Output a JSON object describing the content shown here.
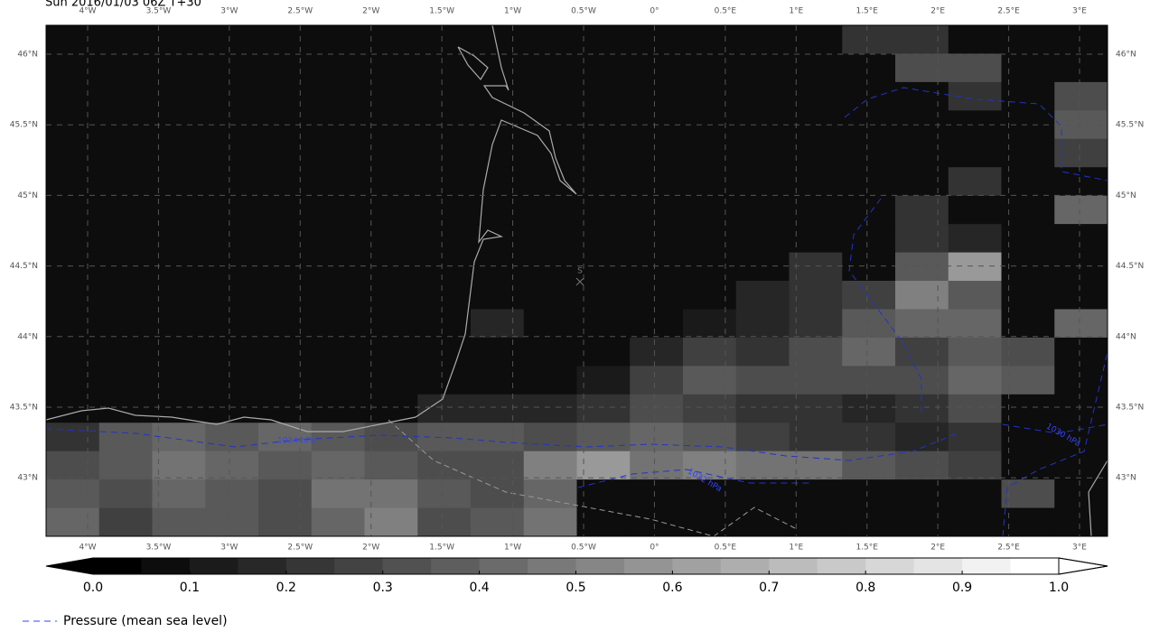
{
  "title": "Sun 2016/01/03 06Z T+30",
  "map": {
    "lon_labels": [
      "4°W",
      "3.5°W",
      "3°W",
      "2.5°W",
      "2°W",
      "1.5°W",
      "1°W",
      "0.5°W",
      "0°",
      "0.5°E",
      "1°E",
      "1.5°E",
      "2°E",
      "2.5°E",
      "3°E"
    ],
    "lat_labels": [
      "46°N",
      "45.5°N",
      "45°N",
      "44.5°N",
      "44°N",
      "43.5°N",
      "43°N"
    ],
    "contour_labels": [
      "1034 hPa",
      "1032 hPa",
      "1030 hPa"
    ],
    "station": "S",
    "cloud_fraction": [
      [
        0.05,
        0.05,
        0.05,
        0.05,
        0.05,
        0.05,
        0.05,
        0.05,
        0.05,
        0.05,
        0.05,
        0.05,
        0.05,
        0.05,
        0.05,
        0.2,
        0.2,
        0.05,
        0.05,
        0.05
      ],
      [
        0.05,
        0.05,
        0.05,
        0.05,
        0.05,
        0.05,
        0.05,
        0.05,
        0.05,
        0.05,
        0.05,
        0.05,
        0.05,
        0.05,
        0.05,
        0.05,
        0.3,
        0.3,
        0.05,
        0.05
      ],
      [
        0.05,
        0.05,
        0.05,
        0.05,
        0.05,
        0.05,
        0.05,
        0.05,
        0.05,
        0.05,
        0.05,
        0.05,
        0.05,
        0.05,
        0.05,
        0.05,
        0.05,
        0.2,
        0.05,
        0.3
      ],
      [
        0.05,
        0.05,
        0.05,
        0.05,
        0.05,
        0.05,
        0.05,
        0.05,
        0.05,
        0.05,
        0.05,
        0.05,
        0.05,
        0.05,
        0.05,
        0.05,
        0.05,
        0.05,
        0.05,
        0.35
      ],
      [
        0.05,
        0.05,
        0.05,
        0.05,
        0.05,
        0.05,
        0.05,
        0.05,
        0.05,
        0.05,
        0.05,
        0.05,
        0.05,
        0.05,
        0.05,
        0.05,
        0.05,
        0.05,
        0.05,
        0.25
      ],
      [
        0.05,
        0.05,
        0.05,
        0.05,
        0.05,
        0.05,
        0.05,
        0.05,
        0.05,
        0.05,
        0.05,
        0.05,
        0.05,
        0.05,
        0.05,
        0.05,
        0.05,
        0.2,
        0.05,
        0.05
      ],
      [
        0.05,
        0.05,
        0.05,
        0.05,
        0.05,
        0.05,
        0.05,
        0.05,
        0.05,
        0.05,
        0.05,
        0.05,
        0.05,
        0.05,
        0.05,
        0.05,
        0.2,
        0.05,
        0.05,
        0.4
      ],
      [
        0.05,
        0.05,
        0.05,
        0.05,
        0.05,
        0.05,
        0.05,
        0.05,
        0.05,
        0.05,
        0.05,
        0.05,
        0.05,
        0.05,
        0.05,
        0.05,
        0.2,
        0.15,
        0.05,
        0.05
      ],
      [
        0.05,
        0.05,
        0.05,
        0.05,
        0.05,
        0.05,
        0.05,
        0.05,
        0.05,
        0.05,
        0.05,
        0.05,
        0.05,
        0.05,
        0.2,
        0.05,
        0.35,
        0.6,
        0.05,
        0.05
      ],
      [
        0.05,
        0.05,
        0.05,
        0.05,
        0.05,
        0.05,
        0.05,
        0.05,
        0.05,
        0.05,
        0.05,
        0.05,
        0.05,
        0.15,
        0.2,
        0.25,
        0.5,
        0.35,
        0.05,
        0.05
      ],
      [
        0.05,
        0.05,
        0.05,
        0.05,
        0.05,
        0.05,
        0.05,
        0.05,
        0.15,
        0.05,
        0.05,
        0.05,
        0.1,
        0.15,
        0.2,
        0.35,
        0.4,
        0.4,
        0.05,
        0.4
      ],
      [
        0.05,
        0.05,
        0.05,
        0.05,
        0.05,
        0.05,
        0.05,
        0.05,
        0.05,
        0.05,
        0.05,
        0.15,
        0.25,
        0.2,
        0.3,
        0.4,
        0.25,
        0.35,
        0.3,
        0.05
      ],
      [
        0.05,
        0.05,
        0.05,
        0.05,
        0.05,
        0.05,
        0.05,
        0.05,
        0.05,
        0.05,
        0.1,
        0.25,
        0.35,
        0.3,
        0.3,
        0.3,
        0.3,
        0.4,
        0.35,
        0.05
      ],
      [
        0.05,
        0.05,
        0.05,
        0.05,
        0.05,
        0.05,
        0.05,
        0.15,
        0.15,
        0.15,
        0.2,
        0.3,
        0.25,
        0.2,
        0.2,
        0.15,
        0.2,
        0.3,
        0.05,
        0.05
      ],
      [
        0.2,
        0.35,
        0.4,
        0.35,
        0.4,
        0.35,
        0.3,
        0.35,
        0.35,
        0.3,
        0.35,
        0.4,
        0.35,
        0.25,
        0.2,
        0.2,
        0.15,
        0.2,
        0.05,
        0.05
      ],
      [
        0.3,
        0.35,
        0.45,
        0.4,
        0.35,
        0.4,
        0.35,
        0.3,
        0.3,
        0.5,
        0.6,
        0.45,
        0.5,
        0.45,
        0.45,
        0.35,
        0.3,
        0.25,
        0.05,
        0.05
      ],
      [
        0.35,
        0.3,
        0.4,
        0.35,
        0.3,
        0.45,
        0.45,
        0.35,
        0.3,
        0.4,
        0.05,
        0.05,
        0.05,
        0.05,
        0.05,
        0.05,
        0.05,
        0.05,
        0.3,
        0.05
      ],
      [
        0.4,
        0.25,
        0.35,
        0.35,
        0.3,
        0.4,
        0.5,
        0.3,
        0.35,
        0.45,
        0.05,
        0.05,
        0.05,
        0.05,
        0.05,
        0.05,
        0.05,
        0.05,
        0.05,
        0.05
      ]
    ]
  },
  "colorbar": {
    "ticks": [
      {
        "value": 0,
        "label": "0.0"
      },
      0.1,
      0.2,
      0.3,
      0.4,
      0.5,
      0.6,
      0.7,
      0.8,
      0.9,
      {
        "value": 1,
        "label": "1.0"
      }
    ]
  },
  "legend": {
    "label": "Pressure (mean sea level)"
  }
}
